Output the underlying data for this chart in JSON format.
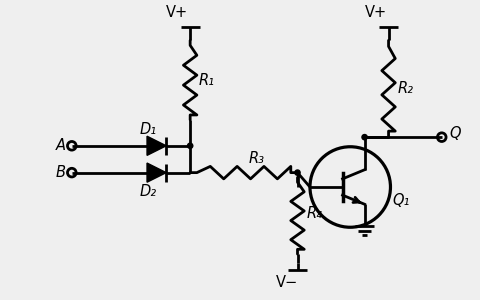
{
  "bg_color": "#efefef",
  "line_color": "#000000",
  "line_width": 2.0,
  "labels": {
    "Vplus1": "V+",
    "Vplus2": "V+",
    "Vminus": "V−",
    "R1": "R₁",
    "R2": "R₂",
    "R3": "R₃",
    "R4": "R₄",
    "D1": "D₁",
    "D2": "D₂",
    "A": "A",
    "B": "B",
    "Q": "Q",
    "Q1": "Q₁"
  }
}
